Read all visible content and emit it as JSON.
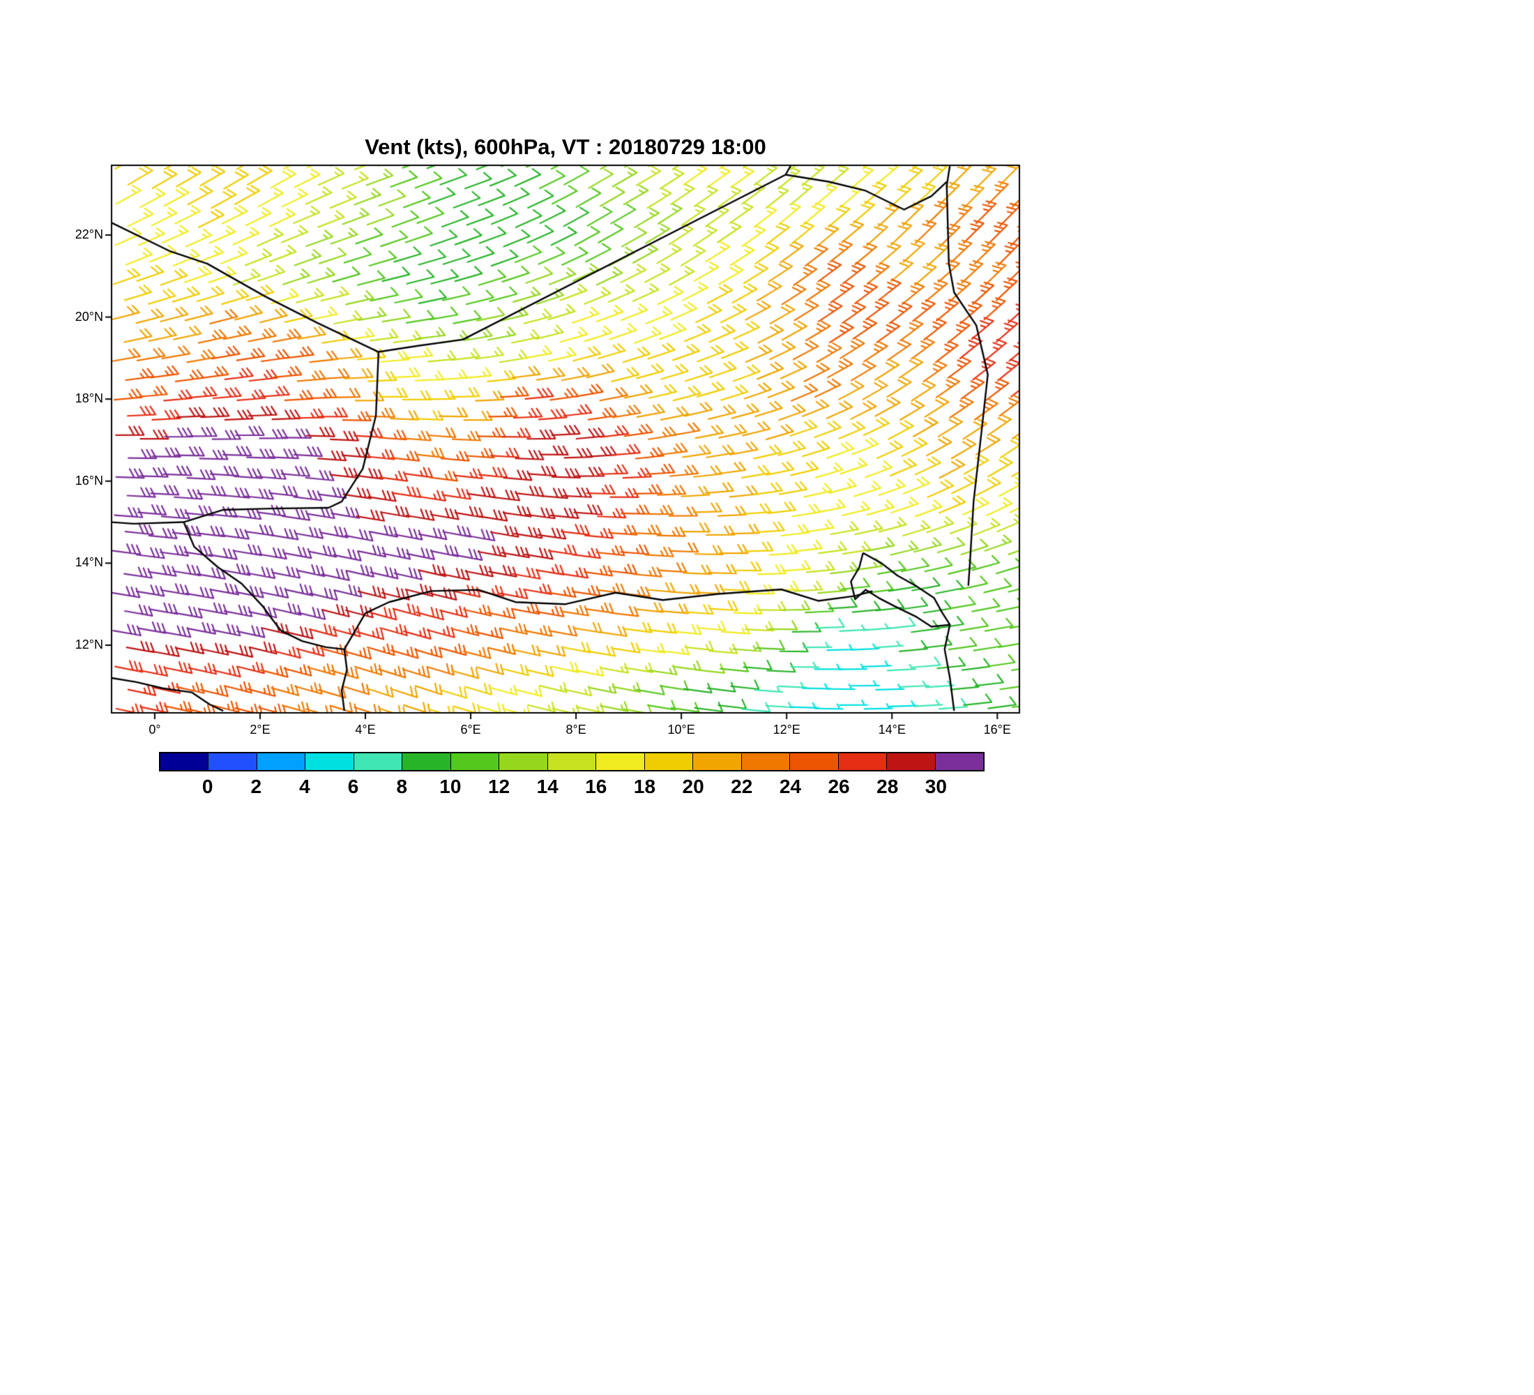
{
  "chart_data": {
    "type": "wind_barbs",
    "title": "Vent (kts), 600hPa, VT : 20180729  18:00",
    "units": "kts",
    "pressure_level": "600hPa",
    "valid_time": "20180729 18:00",
    "extent": {
      "lon_min": -0.82,
      "lon_max": 16.42,
      "lat_min": 10.35,
      "lat_max": 23.7
    },
    "x_ticks": [
      {
        "lon": 0,
        "label": "0°"
      },
      {
        "lon": 2,
        "label": "2°E"
      },
      {
        "lon": 4,
        "label": "4°E"
      },
      {
        "lon": 6,
        "label": "6°E"
      },
      {
        "lon": 8,
        "label": "8°E"
      },
      {
        "lon": 10,
        "label": "10°E"
      },
      {
        "lon": 12,
        "label": "12°E"
      },
      {
        "lon": 14,
        "label": "14°E"
      },
      {
        "lon": 16,
        "label": "16°E"
      }
    ],
    "y_ticks": [
      {
        "lat": 22,
        "label": "22°N"
      },
      {
        "lat": 20,
        "label": "20°N"
      },
      {
        "lat": 18,
        "label": "18°N"
      },
      {
        "lat": 16,
        "label": "16°N"
      },
      {
        "lat": 14,
        "label": "14°N"
      },
      {
        "lat": 12,
        "label": "12°N"
      }
    ],
    "colorbar": {
      "tick_labels": [
        "0",
        "2",
        "4",
        "6",
        "8",
        "10",
        "12",
        "14",
        "16",
        "18",
        "20",
        "22",
        "24",
        "26",
        "28",
        "30"
      ],
      "colors": [
        "#000096",
        "#2050ff",
        "#00a0ff",
        "#00e0e0",
        "#40e6b4",
        "#28b428",
        "#55c81e",
        "#96d71e",
        "#c8e11e",
        "#f0eb1e",
        "#f0cd00",
        "#f0a500",
        "#f07800",
        "#ee5500",
        "#e62e14",
        "#be1414",
        "#7b2f9b"
      ]
    },
    "grid": {
      "lons": [
        0,
        1,
        2,
        3,
        4,
        5,
        6,
        7,
        8,
        9,
        10,
        11,
        12,
        13,
        14,
        15,
        16
      ],
      "lats": [
        23,
        22,
        21,
        20,
        19,
        18,
        17,
        16,
        15,
        14,
        13,
        12,
        11
      ],
      "speed_kts": [
        [
          18,
          20,
          18,
          16,
          14,
          10,
          8,
          10,
          12,
          14,
          16,
          16,
          14,
          16,
          18,
          20,
          22
        ],
        [
          16,
          18,
          16,
          14,
          12,
          10,
          8,
          8,
          10,
          12,
          14,
          16,
          18,
          20,
          22,
          24,
          26
        ],
        [
          18,
          16,
          14,
          12,
          10,
          8,
          10,
          12,
          12,
          14,
          16,
          18,
          24,
          24,
          20,
          22,
          24
        ],
        [
          20,
          22,
          20,
          16,
          12,
          10,
          12,
          14,
          16,
          16,
          18,
          20,
          22,
          26,
          26,
          24,
          26
        ],
        [
          22,
          24,
          26,
          22,
          18,
          16,
          14,
          16,
          18,
          18,
          18,
          20,
          22,
          24,
          22,
          26,
          28
        ],
        [
          26,
          28,
          26,
          24,
          20,
          18,
          20,
          28,
          24,
          20,
          20,
          20,
          22,
          22,
          20,
          24,
          26
        ],
        [
          30,
          32,
          32,
          30,
          26,
          22,
          24,
          28,
          30,
          24,
          22,
          20,
          20,
          18,
          20,
          22,
          20
        ],
        [
          32,
          32,
          32,
          30,
          28,
          26,
          28,
          30,
          28,
          26,
          22,
          20,
          18,
          16,
          18,
          20,
          18
        ],
        [
          32,
          32,
          32,
          32,
          30,
          30,
          30,
          30,
          28,
          24,
          22,
          20,
          18,
          16,
          16,
          18,
          16
        ],
        [
          32,
          32,
          32,
          32,
          32,
          30,
          30,
          28,
          26,
          24,
          22,
          20,
          16,
          14,
          12,
          10,
          12
        ],
        [
          32,
          32,
          32,
          30,
          28,
          28,
          26,
          26,
          24,
          22,
          20,
          18,
          14,
          10,
          8,
          10,
          12
        ],
        [
          30,
          30,
          28,
          26,
          26,
          26,
          24,
          22,
          20,
          18,
          16,
          14,
          8,
          4,
          8,
          10,
          12
        ],
        [
          26,
          24,
          24,
          22,
          22,
          20,
          18,
          16,
          14,
          12,
          10,
          8,
          6,
          4,
          6,
          8,
          10
        ]
      ],
      "direction_deg": [
        [
          60,
          60,
          60,
          65,
          70,
          70,
          70,
          65,
          60,
          60,
          55,
          55,
          50,
          50,
          50,
          45,
          45
        ],
        [
          65,
          65,
          65,
          70,
          70,
          70,
          70,
          65,
          60,
          60,
          55,
          55,
          50,
          50,
          45,
          45,
          45
        ],
        [
          70,
          70,
          70,
          72,
          75,
          75,
          72,
          70,
          65,
          62,
          60,
          58,
          55,
          52,
          50,
          48,
          45
        ],
        [
          75,
          75,
          75,
          78,
          80,
          80,
          78,
          75,
          70,
          68,
          65,
          62,
          58,
          55,
          52,
          50,
          48
        ],
        [
          80,
          80,
          82,
          84,
          85,
          85,
          82,
          80,
          75,
          72,
          70,
          68,
          62,
          58,
          55,
          52,
          50
        ],
        [
          85,
          85,
          86,
          88,
          90,
          90,
          88,
          85,
          80,
          78,
          75,
          72,
          68,
          62,
          58,
          55,
          52
        ],
        [
          90,
          90,
          90,
          92,
          94,
          95,
          92,
          90,
          85,
          82,
          80,
          78,
          72,
          68,
          62,
          58,
          55
        ],
        [
          92,
          94,
          95,
          96,
          98,
          98,
          96,
          95,
          90,
          88,
          85,
          82,
          78,
          72,
          68,
          62,
          60
        ],
        [
          95,
          96,
          98,
          100,
          100,
          100,
          100,
          98,
          95,
          92,
          90,
          88,
          82,
          78,
          72,
          68,
          65
        ],
        [
          98,
          100,
          100,
          102,
          102,
          102,
          100,
          100,
          98,
          95,
          92,
          90,
          85,
          82,
          78,
          75,
          72
        ],
        [
          100,
          100,
          102,
          104,
          105,
          105,
          102,
          100,
          98,
          96,
          94,
          92,
          88,
          85,
          82,
          80,
          78
        ],
        [
          100,
          102,
          104,
          105,
          106,
          106,
          104,
          102,
          100,
          98,
          96,
          94,
          90,
          88,
          85,
          82,
          80
        ],
        [
          102,
          104,
          105,
          106,
          108,
          108,
          106,
          104,
          102,
          100,
          98,
          96,
          92,
          90,
          88,
          85,
          82
        ]
      ]
    },
    "borders": [
      [
        [
          -0.82,
          22.3
        ],
        [
          0.3,
          21.6
        ],
        [
          1.0,
          21.3
        ],
        [
          2.1,
          20.5
        ],
        [
          3.1,
          19.85
        ],
        [
          4.25,
          19.15
        ]
      ],
      [
        [
          4.25,
          19.15
        ],
        [
          5.0,
          19.3
        ],
        [
          5.85,
          19.45
        ],
        [
          11.98,
          23.47
        ]
      ],
      [
        [
          11.98,
          23.47
        ],
        [
          12.08,
          23.7
        ]
      ],
      [
        [
          11.98,
          23.47
        ],
        [
          12.8,
          23.3
        ],
        [
          13.5,
          23.08
        ],
        [
          14.23,
          22.62
        ],
        [
          14.75,
          22.95
        ],
        [
          15.04,
          23.3
        ]
      ],
      [
        [
          15.1,
          23.7
        ],
        [
          15.04,
          23.2
        ],
        [
          15.08,
          21.3
        ],
        [
          15.18,
          20.6
        ],
        [
          15.6,
          19.8
        ],
        [
          15.82,
          18.6
        ],
        [
          15.7,
          17.2
        ],
        [
          15.55,
          15.5
        ],
        [
          15.48,
          14.0
        ],
        [
          15.45,
          13.45
        ]
      ],
      [
        [
          4.25,
          19.15
        ],
        [
          4.2,
          17.6
        ],
        [
          3.95,
          16.3
        ],
        [
          3.55,
          15.5
        ],
        [
          3.3,
          15.35
        ],
        [
          2.2,
          15.33
        ],
        [
          1.3,
          15.3
        ],
        [
          0.55,
          15.0
        ],
        [
          -0.4,
          14.96
        ],
        [
          -0.82,
          15.0
        ]
      ],
      [
        [
          0.55,
          15.0
        ],
        [
          0.75,
          14.4
        ],
        [
          1.2,
          13.9
        ],
        [
          1.65,
          13.5
        ],
        [
          2.05,
          12.95
        ],
        [
          2.25,
          12.6
        ],
        [
          2.4,
          12.35
        ]
      ],
      [
        [
          2.4,
          12.35
        ],
        [
          2.8,
          12.1
        ],
        [
          3.25,
          11.95
        ],
        [
          3.6,
          11.9
        ],
        [
          3.65,
          11.4
        ],
        [
          3.55,
          10.9
        ],
        [
          3.6,
          10.4
        ]
      ],
      [
        [
          3.6,
          11.9
        ],
        [
          4.0,
          12.78
        ],
        [
          4.45,
          13.05
        ],
        [
          5.25,
          13.32
        ],
        [
          6.15,
          13.35
        ],
        [
          6.85,
          13.05
        ],
        [
          7.8,
          13.0
        ],
        [
          8.75,
          13.28
        ],
        [
          9.65,
          13.1
        ],
        [
          10.7,
          13.25
        ],
        [
          11.9,
          13.36
        ],
        [
          12.6,
          13.08
        ],
        [
          13.3,
          13.2
        ],
        [
          13.63,
          13.32
        ]
      ],
      [
        [
          13.45,
          14.25
        ],
        [
          13.8,
          14.0
        ],
        [
          14.1,
          13.7
        ],
        [
          14.45,
          13.45
        ],
        [
          14.8,
          13.15
        ],
        [
          14.95,
          12.8
        ],
        [
          15.1,
          12.5
        ],
        [
          14.75,
          12.45
        ],
        [
          14.45,
          12.7
        ],
        [
          14.05,
          12.95
        ],
        [
          13.75,
          13.15
        ],
        [
          13.5,
          13.35
        ],
        [
          13.3,
          13.12
        ],
        [
          13.22,
          13.55
        ],
        [
          13.38,
          13.9
        ],
        [
          13.45,
          14.25
        ]
      ],
      [
        [
          15.1,
          12.5
        ],
        [
          15.0,
          11.9
        ],
        [
          15.1,
          11.2
        ],
        [
          15.18,
          10.4
        ]
      ],
      [
        [
          -0.82,
          11.2
        ],
        [
          -0.35,
          11.1
        ],
        [
          0.15,
          10.95
        ],
        [
          0.7,
          10.85
        ],
        [
          1.05,
          10.55
        ],
        [
          1.3,
          10.4
        ]
      ]
    ]
  }
}
